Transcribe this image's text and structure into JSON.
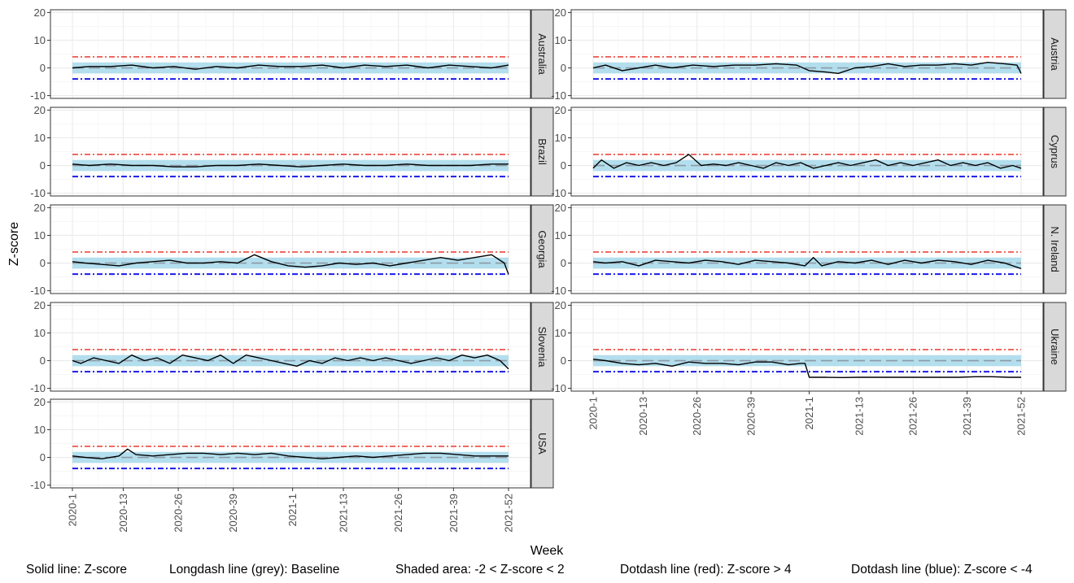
{
  "figure": {
    "ylabel": "Z-score",
    "xlabel": "Week",
    "legend": [
      "Solid line: Z-score",
      "Longdash line (grey): Baseline",
      "Shaded area: -2 < Z-score < 2",
      "Dotdash line (red): Z-score > 4",
      "Dotdash line (blue): Z-score < -4"
    ]
  },
  "colors": {
    "zscore_line": "#000000",
    "baseline": "#8c9aa6",
    "band": "#a6d8ea",
    "upper": "#e8271b",
    "lower": "#1a1ae6",
    "strip_fill": "#d9d9d9",
    "grid_major": "#ebebeb",
    "grid_minor": "#f5f5f5"
  },
  "chart_data": {
    "type": "line",
    "facet_layout": "2 columns, 5 rows; x-axis shown on bottom panel of each column; facet labels on right strip",
    "x_ticks": [
      "2020-1",
      "2020-13",
      "2020-26",
      "2020-39",
      "2021-1",
      "2021-13",
      "2021-26",
      "2021-39",
      "2021-52"
    ],
    "y_ticks": [
      "-10",
      "0",
      "10",
      "20"
    ],
    "ylim": [
      -11,
      21
    ],
    "x_range_weeks": [
      1,
      104
    ],
    "reference_lines": {
      "upper": 4,
      "lower": -4,
      "baseline": 0,
      "band": [
        -2,
        2
      ]
    },
    "panels": [
      {
        "name": "Australia",
        "x": [
          1,
          5,
          10,
          15,
          20,
          25,
          30,
          35,
          40,
          45,
          50,
          55,
          60,
          65,
          70,
          75,
          80,
          85,
          90,
          95,
          100,
          104
        ],
        "y": [
          0,
          0.5,
          0.5,
          1,
          0,
          0.5,
          -0.5,
          0.5,
          0,
          1,
          0.5,
          0.5,
          1,
          0,
          1,
          0.5,
          1,
          0,
          1,
          0.5,
          0,
          1
        ]
      },
      {
        "name": "Austria",
        "x": [
          1,
          4,
          8,
          12,
          16,
          20,
          25,
          30,
          35,
          40,
          45,
          50,
          53,
          57,
          60,
          64,
          68,
          72,
          76,
          80,
          84,
          88,
          92,
          96,
          100,
          103,
          104
        ],
        "y": [
          0,
          1,
          -1,
          0,
          1,
          0,
          1,
          0.5,
          1,
          1,
          1.5,
          1,
          -1,
          -1.5,
          -2,
          0,
          0.5,
          1.5,
          0.5,
          1,
          1,
          1.5,
          1,
          2,
          1.5,
          1,
          -2
        ]
      },
      {
        "name": "Brazil",
        "x": [
          1,
          5,
          10,
          15,
          20,
          25,
          30,
          35,
          40,
          45,
          50,
          55,
          60,
          65,
          70,
          75,
          80,
          85,
          90,
          95,
          100,
          104
        ],
        "y": [
          0.5,
          0,
          0.5,
          0,
          0,
          -0.5,
          -0.5,
          0,
          0,
          0.5,
          0,
          -0.5,
          0,
          0.5,
          0,
          0,
          0.5,
          0,
          0,
          0,
          0.5,
          0.5
        ]
      },
      {
        "name": "Cyprus",
        "x": [
          1,
          3,
          6,
          9,
          12,
          15,
          18,
          21,
          24,
          27,
          30,
          33,
          36,
          39,
          42,
          45,
          48,
          51,
          54,
          57,
          60,
          63,
          66,
          69,
          72,
          75,
          78,
          81,
          84,
          87,
          90,
          93,
          96,
          99,
          102,
          104
        ],
        "y": [
          -1,
          2,
          -1,
          1,
          0,
          1,
          0,
          1,
          4,
          0,
          0.5,
          0,
          1,
          0,
          -1,
          1,
          0,
          1,
          -1,
          0,
          1,
          0,
          1,
          2,
          0,
          1,
          0,
          1,
          2,
          0,
          1,
          0,
          1,
          -1,
          0,
          -1
        ]
      },
      {
        "name": "Georgia",
        "x": [
          1,
          4,
          8,
          12,
          16,
          20,
          24,
          28,
          32,
          36,
          40,
          44,
          48,
          52,
          56,
          60,
          64,
          68,
          72,
          76,
          80,
          84,
          88,
          92,
          96,
          100,
          103,
          104
        ],
        "y": [
          0.5,
          0,
          -0.5,
          -1,
          0,
          0.5,
          1,
          0,
          0,
          0.5,
          0,
          3,
          0.5,
          -1,
          -1.5,
          -1,
          0,
          -0.5,
          0,
          -1,
          0,
          1,
          2,
          1,
          2,
          3,
          0,
          -4
        ]
      },
      {
        "name": "N. Ireland",
        "x": [
          1,
          4,
          8,
          12,
          16,
          20,
          24,
          28,
          32,
          36,
          40,
          44,
          48,
          52,
          54,
          56,
          60,
          64,
          68,
          72,
          76,
          80,
          84,
          88,
          92,
          96,
          100,
          104
        ],
        "y": [
          0.5,
          0,
          0.5,
          -1,
          1,
          0.5,
          0,
          1,
          0.5,
          -0.5,
          1,
          0.5,
          0,
          -1,
          2,
          -1,
          0.5,
          0,
          1,
          -0.5,
          1,
          0,
          1,
          0.5,
          -0.5,
          1,
          0,
          -2
        ]
      },
      {
        "name": "Slovenia",
        "x": [
          1,
          3,
          6,
          9,
          12,
          15,
          18,
          21,
          24,
          27,
          30,
          33,
          36,
          39,
          42,
          45,
          48,
          51,
          54,
          57,
          60,
          63,
          66,
          69,
          72,
          75,
          78,
          81,
          84,
          87,
          90,
          93,
          96,
          99,
          102,
          104
        ],
        "y": [
          0,
          -1,
          1,
          0,
          -1,
          2,
          0,
          1,
          -1,
          2,
          1,
          0,
          2,
          -1,
          2,
          1,
          0,
          -1,
          -2,
          0,
          -1,
          1,
          0,
          1,
          0,
          1,
          0,
          -1,
          0,
          1,
          0,
          2,
          1,
          2,
          0,
          -3
        ]
      },
      {
        "name": "Ukraine",
        "x": [
          1,
          4,
          8,
          12,
          16,
          20,
          24,
          28,
          32,
          36,
          40,
          44,
          48,
          51,
          52,
          53,
          57,
          61,
          65,
          69,
          73,
          77,
          81,
          85,
          89,
          93,
          97,
          101,
          104
        ],
        "y": [
          0.5,
          0,
          -1,
          -1.5,
          -1,
          -2,
          -0.5,
          -1,
          -1,
          -1.5,
          -0.5,
          -0.5,
          -1.5,
          -1,
          -1,
          -6,
          -6,
          -6.1,
          -6,
          -6,
          -6,
          -6,
          -6,
          -6,
          -6,
          -5.8,
          -5.8,
          -6,
          -6
        ]
      },
      {
        "name": "USA",
        "x": [
          1,
          4,
          8,
          12,
          14,
          16,
          20,
          24,
          28,
          32,
          36,
          40,
          44,
          48,
          52,
          56,
          60,
          64,
          68,
          72,
          76,
          80,
          84,
          88,
          92,
          96,
          100,
          104
        ],
        "y": [
          0.5,
          0,
          -0.5,
          0.5,
          3,
          1,
          0.5,
          1,
          1.5,
          1.5,
          1,
          1.5,
          1,
          1.5,
          0.5,
          0,
          -0.5,
          0,
          0.5,
          0,
          0.5,
          1,
          1.5,
          1.5,
          1,
          0.5,
          0.5,
          0.5
        ]
      }
    ]
  }
}
